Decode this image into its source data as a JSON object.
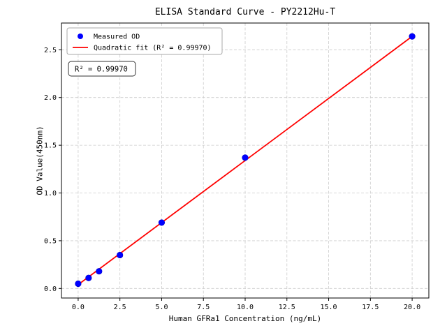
{
  "chart_data": {
    "type": "scatter",
    "title": "ELISA Standard Curve - PY2212Hu-T",
    "xlabel": "Human GFRa1 Concentration (ng/mL)",
    "ylabel": "OD Value(450nm)",
    "xlim": [
      -1,
      21
    ],
    "ylim": [
      -0.1,
      2.78
    ],
    "x_ticks": [
      0.0,
      2.5,
      5.0,
      7.5,
      10.0,
      12.5,
      15.0,
      17.5,
      20.0
    ],
    "y_ticks": [
      0.0,
      0.5,
      1.0,
      1.5,
      2.0,
      2.5
    ],
    "grid": true,
    "grid_style": "dashed",
    "legend_position": "upper left",
    "series": [
      {
        "name": "Measured OD",
        "type": "scatter",
        "color": "#0000ff",
        "x": [
          0,
          0.625,
          1.25,
          2.5,
          5,
          10,
          20
        ],
        "y": [
          0.05,
          0.11,
          0.18,
          0.35,
          0.69,
          1.37,
          2.64
        ]
      },
      {
        "name": "Quadratic fit (R² = 0.99970)",
        "type": "line",
        "color": "#ff0000",
        "x": [
          0,
          20
        ],
        "y": [
          0.04,
          2.64
        ]
      }
    ],
    "annotation": {
      "text": "R² = 0.99970"
    }
  }
}
